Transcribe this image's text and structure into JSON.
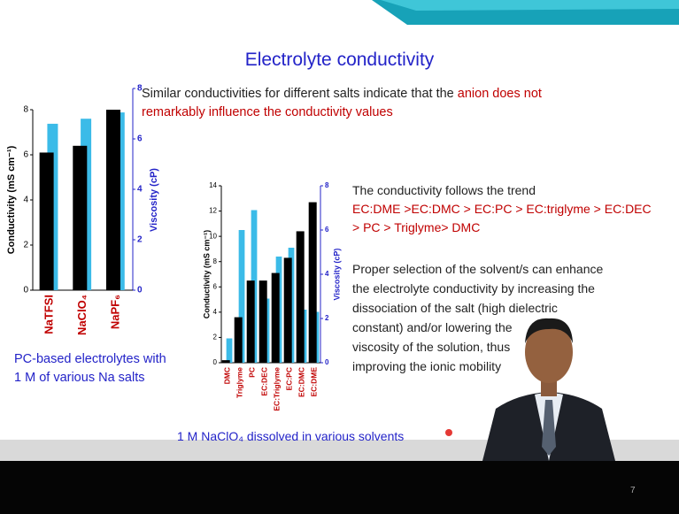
{
  "slide": {
    "title": "Electrolyte conductivity",
    "intro": "Similar conductivities for different salts indicate that the",
    "intro_highlight": "anion does not remarkably influence the conductivity values",
    "left_caption": [
      "PC-based electrolytes with",
      "1 M of various Na salts"
    ],
    "chart_caption": "1 M NaClO₄ dissolved in various solvents",
    "trend_intro": "The conductivity follows the trend",
    "trend": "EC:DME >EC:DMC > EC:PC > EC:triglyme > EC:DEC > PC > Triglyme> DMC",
    "proper_selection": [
      "Proper selection of the solvent/s can enhance",
      "the electrolyte conductivity by increasing the",
      "dissociation of the salt (high dielectric",
      "constant) and/or lowering the",
      "viscosity of the solution, thus",
      "improving the ionic mobility"
    ],
    "page_number": "7"
  },
  "chart_data": [
    {
      "type": "bar",
      "categories": [
        "NaTFSI",
        "NaClO₄",
        "NaPF₆"
      ],
      "category_color": "#c00000",
      "ylabel": "Conductivity (mS cm⁻¹)",
      "y2label": "Viscosity (cP)",
      "ylim": [
        0,
        8
      ],
      "yticks": [
        0,
        2,
        4,
        6,
        8
      ],
      "y2lim": [
        0,
        8
      ],
      "y2ticks": [
        0,
        2,
        4,
        6,
        8
      ],
      "y2color": "#2323c8",
      "series": [
        {
          "color": "#3bbbe8",
          "axis": "y2",
          "values": [
            6.6,
            6.8,
            7.05
          ]
        },
        {
          "color": "#000000",
          "values": [
            6.1,
            6.4,
            8.0
          ]
        }
      ]
    },
    {
      "type": "bar",
      "categories": [
        "DMC",
        "Triglyme",
        "PC",
        "EC:DEC",
        "EC:Triglyme",
        "EC:PC",
        "EC:DMC",
        "EC:DME"
      ],
      "category_color": "#c00000",
      "ylabel": "Conductivity (mS cm⁻¹)",
      "y2label": "Viscosity (cP)",
      "ylim": [
        0,
        14
      ],
      "yticks": [
        0,
        2,
        4,
        6,
        8,
        10,
        12,
        14
      ],
      "y2lim": [
        0,
        8
      ],
      "y2ticks": [
        0,
        2,
        4,
        6,
        8
      ],
      "y2color": "#2323c8",
      "series": [
        {
          "color": "#3bbbe8",
          "axis": "y2",
          "values": [
            1.1,
            6.0,
            6.9,
            2.9,
            4.8,
            5.2,
            2.4,
            2.3
          ]
        },
        {
          "color": "#000000",
          "values": [
            0.2,
            3.6,
            6.5,
            6.5,
            7.1,
            8.3,
            10.4,
            12.7
          ]
        }
      ]
    }
  ]
}
